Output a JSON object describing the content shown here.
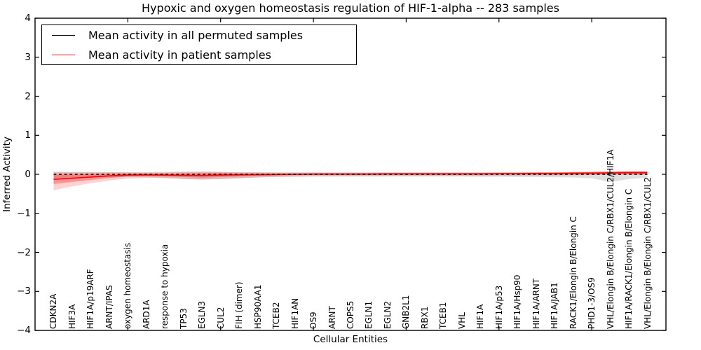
{
  "figure": {
    "title": "Hypoxic and oxygen homeostasis regulation of HIF-1-alpha -- 283 samples",
    "xlabel": "Cellular Entities",
    "ylabel": "Inferred Activity"
  },
  "legend": {
    "items": [
      {
        "label": "Mean activity in all permuted samples",
        "color": "#000000"
      },
      {
        "label": "Mean activity in patient samples",
        "color": "#ff0000"
      }
    ]
  },
  "chart_data": {
    "type": "line",
    "title": "Hypoxic and oxygen homeostasis regulation of HIF-1-alpha -- 283 samples",
    "xlabel": "Cellular Entities",
    "ylabel": "Inferred Activity",
    "grid": false,
    "legend_position": "upper left",
    "ylim": [
      -4,
      4
    ],
    "yticks": [
      4,
      3,
      2,
      1,
      0,
      -1,
      -2,
      -3,
      -4
    ],
    "ytick_labels": [
      "4",
      "3",
      "2",
      "1",
      "0",
      "−1",
      "−2",
      "−3",
      "−4"
    ],
    "xlim": [
      0,
      34
    ],
    "xtick_positions": [
      5,
      10,
      15,
      20,
      25,
      30
    ],
    "x": [
      1,
      2,
      3,
      4,
      5,
      6,
      7,
      8,
      9,
      10,
      11,
      12,
      13,
      14,
      15,
      16,
      17,
      18,
      19,
      20,
      21,
      22,
      23,
      24,
      25,
      26,
      27,
      28,
      29,
      30,
      31,
      32,
      33
    ],
    "categories": [
      "CDKN2A",
      "HIF3A",
      "HIF1A/p19ARF",
      "ARNT/IPAS",
      "oxygen homeostasis",
      "ARD1A",
      "response to hypoxia",
      "TP53",
      "EGLN3",
      "CUL2",
      "FIH (dimer)",
      "HSP90AA1",
      "TCEB2",
      "HIF1AN",
      "OS9",
      "ARNT",
      "COPS5",
      "EGLN1",
      "EGLN2",
      "GNB2L1",
      "RBX1",
      "TCEB1",
      "VHL",
      "HIF1A",
      "HIF1A/p53",
      "HIF1A/Hsp90",
      "HIF1A/ARNT",
      "HIF1A/JAB1",
      "RACK1/Elongin B/Elongin C",
      "PHD1-3/OS9",
      "VHL/Elongin B/Elongin C/RBX1/CUL2/HIF1A",
      "HIF1A/RACK1/Elongin B/Elongin C",
      "VHL/Elongin B/Elongin C/RBX1/CUL2"
    ],
    "series": [
      {
        "name": "Mean activity in all permuted samples",
        "color": "#000000",
        "line_style": "dashed",
        "values": [
          0,
          0,
          0,
          0,
          0,
          0,
          0,
          0,
          0,
          0,
          0,
          0,
          0,
          0,
          0,
          0,
          0,
          0,
          0,
          0,
          0,
          0,
          0,
          0,
          0,
          0,
          0,
          0,
          0,
          0,
          0,
          0,
          0
        ],
        "band_upper": [
          0.07,
          0.065,
          0.06,
          0.06,
          0.06,
          0.06,
          0.065,
          0.07,
          0.07,
          0.065,
          0.06,
          0.055,
          0.05,
          0.05,
          0.05,
          0.05,
          0.05,
          0.05,
          0.05,
          0.05,
          0.05,
          0.05,
          0.05,
          0.05,
          0.05,
          0.05,
          0.055,
          0.055,
          0.06,
          0.06,
          0.07,
          0.08,
          0.08
        ],
        "band_lower": [
          -0.09,
          -0.085,
          -0.08,
          -0.075,
          -0.07,
          -0.075,
          -0.09,
          -0.12,
          -0.13,
          -0.12,
          -0.1,
          -0.08,
          -0.07,
          -0.065,
          -0.06,
          -0.06,
          -0.06,
          -0.06,
          -0.06,
          -0.06,
          -0.06,
          -0.06,
          -0.06,
          -0.065,
          -0.065,
          -0.07,
          -0.07,
          -0.075,
          -0.08,
          -0.1,
          -0.2,
          -0.12,
          -0.085
        ],
        "band_color": "rgba(0,0,0,0.13)"
      },
      {
        "name": "Mean activity in patient samples",
        "color": "#ff0000",
        "line_style": "solid",
        "values": [
          -0.13,
          -0.1,
          -0.07,
          -0.04,
          -0.02,
          -0.015,
          -0.02,
          -0.025,
          -0.03,
          -0.02,
          -0.015,
          -0.01,
          -0.005,
          0.0,
          0.005,
          0.005,
          0.005,
          0.005,
          0.01,
          0.01,
          0.01,
          0.01,
          0.01,
          0.01,
          0.015,
          0.015,
          0.02,
          0.02,
          0.025,
          0.03,
          0.035,
          0.04,
          0.04
        ],
        "band_inner_upper": [
          -0.01,
          -0.005,
          0.005,
          0.015,
          0.02,
          0.02,
          0.015,
          0.02,
          0.025,
          0.03,
          0.025,
          0.02,
          0.02,
          0.02,
          0.025,
          0.025,
          0.025,
          0.025,
          0.03,
          0.03,
          0.03,
          0.03,
          0.03,
          0.03,
          0.035,
          0.035,
          0.042,
          0.045,
          0.053,
          0.06,
          0.067,
          0.075,
          0.075
        ],
        "band_inner_lower": [
          -0.25,
          -0.195,
          -0.145,
          -0.095,
          -0.06,
          -0.05,
          -0.055,
          -0.07,
          -0.085,
          -0.07,
          -0.055,
          -0.04,
          -0.03,
          -0.02,
          -0.015,
          -0.015,
          -0.015,
          -0.015,
          -0.01,
          -0.01,
          -0.01,
          -0.01,
          -0.01,
          -0.01,
          -0.005,
          -0.005,
          -0.002,
          -0.005,
          -0.003,
          0.0,
          0.003,
          0.005,
          0.005
        ],
        "band_outer_upper": [
          0.05,
          0.05,
          0.05,
          0.05,
          0.045,
          0.04,
          0.045,
          0.055,
          0.065,
          0.06,
          0.05,
          0.045,
          0.04,
          0.04,
          0.04,
          0.04,
          0.04,
          0.04,
          0.045,
          0.045,
          0.045,
          0.045,
          0.045,
          0.045,
          0.05,
          0.05,
          0.055,
          0.06,
          0.065,
          0.07,
          0.075,
          0.08,
          0.08
        ],
        "band_outer_lower": [
          -0.41,
          -0.31,
          -0.23,
          -0.16,
          -0.11,
          -0.09,
          -0.1,
          -0.12,
          -0.14,
          -0.12,
          -0.1,
          -0.08,
          -0.065,
          -0.055,
          -0.05,
          -0.05,
          -0.045,
          -0.045,
          -0.04,
          -0.04,
          -0.04,
          -0.04,
          -0.04,
          -0.04,
          -0.035,
          -0.035,
          -0.03,
          -0.03,
          -0.025,
          -0.02,
          -0.015,
          -0.01,
          -0.01
        ],
        "band_inner_color": "rgba(255,0,0,0.30)",
        "band_outer_color": "rgba(255,0,0,0.18)"
      }
    ]
  }
}
